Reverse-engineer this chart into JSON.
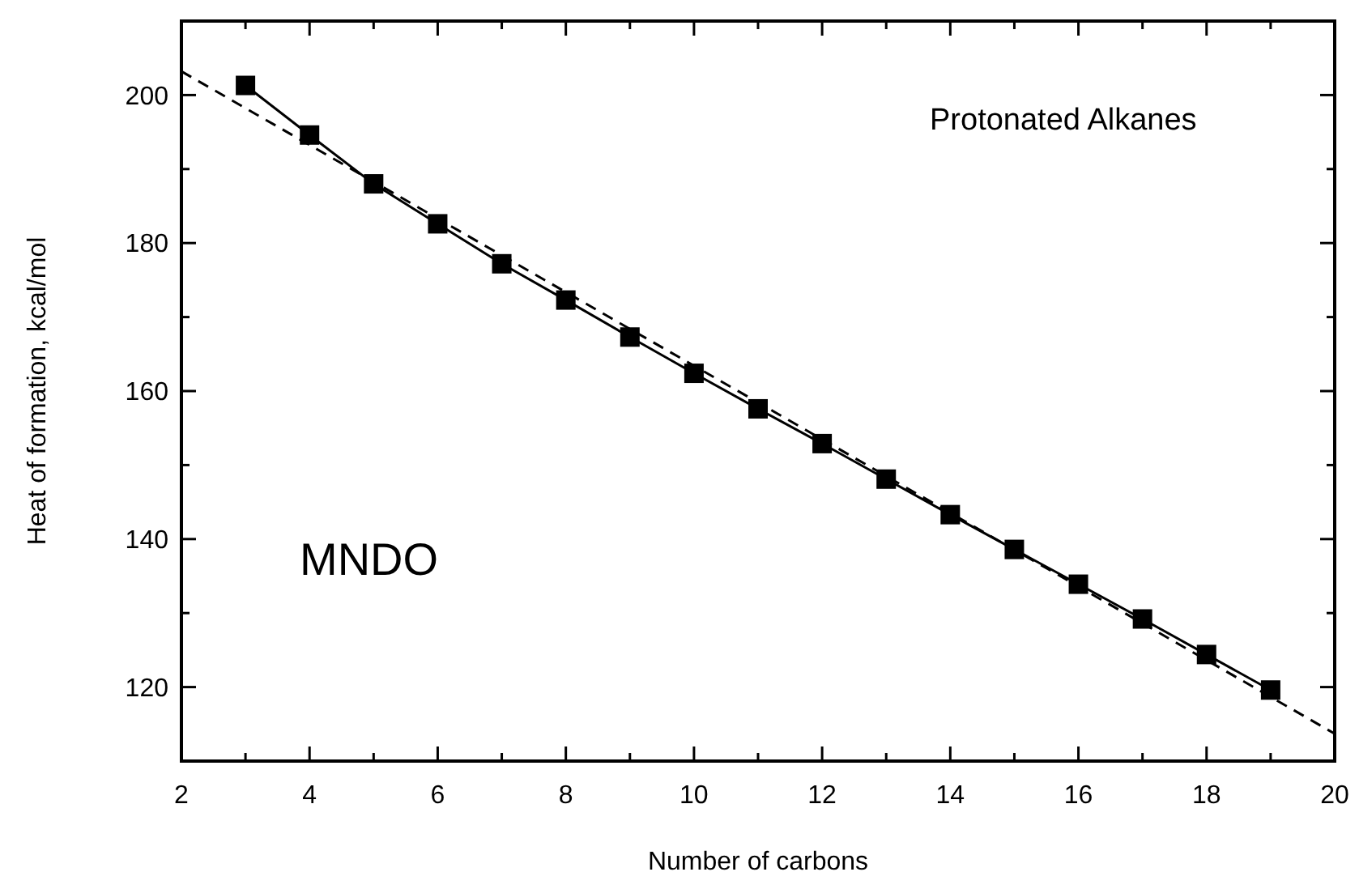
{
  "chart_data": {
    "type": "line",
    "xlabel": "Number of carbons",
    "ylabel": "Heat of formation, kcal/mol",
    "annotations": [
      "Protonated Alkanes",
      "MNDO"
    ],
    "xlim": [
      2,
      20
    ],
    "ylim": [
      110,
      210
    ],
    "xticks": [
      2,
      {
        "value": 3,
        "label": null
      },
      4,
      {
        "value": 5,
        "label": null
      },
      6,
      {
        "value": 7,
        "label": null
      },
      8,
      {
        "value": 9,
        "label": null
      },
      10,
      {
        "value": 11,
        "label": null
      },
      12,
      {
        "value": 13,
        "label": null
      },
      14,
      {
        "value": 15,
        "label": null
      },
      16,
      {
        "value": 17,
        "label": null
      },
      18,
      {
        "value": 19,
        "label": null
      },
      20
    ],
    "yticks": [
      {
        "value": 110,
        "label": null
      },
      120,
      {
        "value": 130,
        "label": null
      },
      140,
      {
        "value": 150,
        "label": null
      },
      160,
      {
        "value": 170,
        "label": null
      },
      180,
      {
        "value": 190,
        "label": null
      },
      200,
      {
        "value": 210,
        "label": null
      }
    ],
    "grid": false,
    "series": [
      {
        "color": "#000000",
        "marker": "square",
        "line_style": "solid",
        "x": [
          3,
          4,
          5,
          6,
          7,
          8,
          9,
          10,
          11,
          12,
          13,
          14,
          15,
          16,
          17,
          18,
          19
        ],
        "values": [
          201.3,
          194.6,
          188.0,
          182.6,
          177.2,
          172.3,
          167.3,
          162.4,
          157.6,
          152.9,
          148.1,
          143.3,
          138.6,
          133.9,
          129.2,
          124.4,
          119.6
        ]
      },
      {
        "color": "#000000",
        "marker": "none",
        "line_style": "dashed",
        "x": [
          2,
          20
        ],
        "values": [
          203.2,
          113.7
        ]
      }
    ]
  }
}
